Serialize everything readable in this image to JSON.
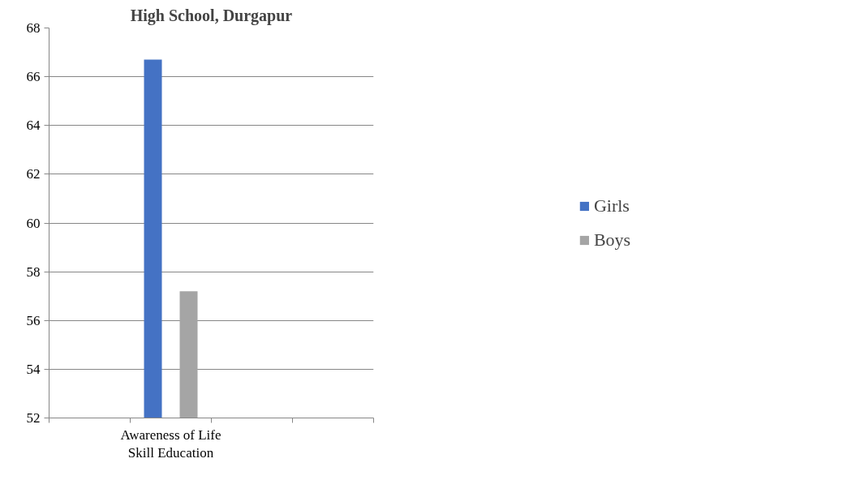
{
  "chart_data": {
    "type": "bar",
    "title": "High School, Durgapur",
    "categories": [
      null,
      "Awareness of Life Skill Education",
      null,
      null
    ],
    "series": [
      {
        "name": "Girls",
        "color": "#4472c4",
        "values": [
          null,
          66.7,
          null,
          null
        ]
      },
      {
        "name": "Boys",
        "color": "#a5a5a5",
        "values": [
          null,
          57.2,
          null,
          null
        ]
      }
    ],
    "ylim": [
      52,
      68
    ],
    "yticks": [
      52,
      54,
      56,
      58,
      60,
      62,
      64,
      66,
      68
    ],
    "grid": "y",
    "legend": "right"
  }
}
